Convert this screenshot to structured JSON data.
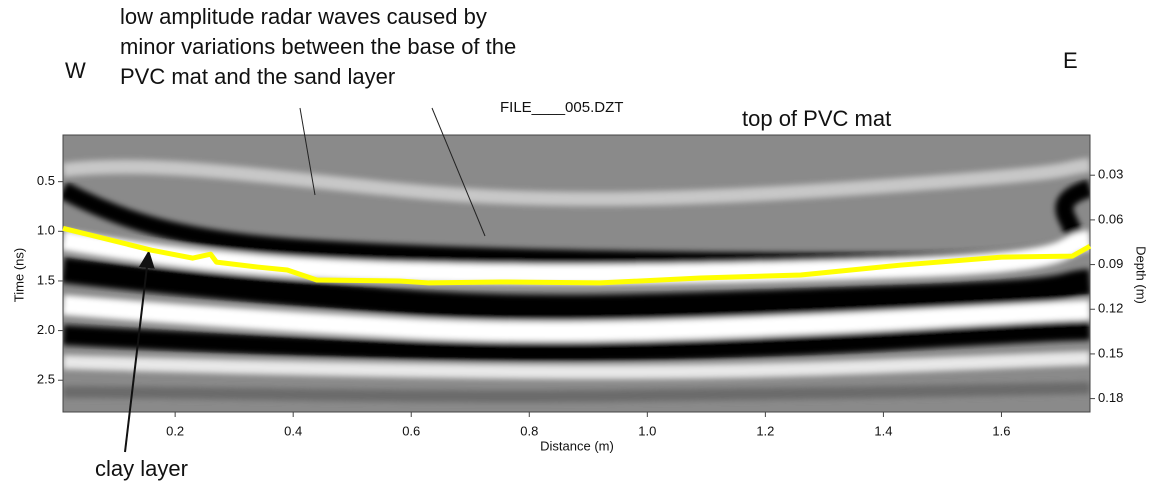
{
  "chart_data": {
    "type": "line",
    "annotation_lines": [
      "low amplitude radar waves caused by",
      "minor variations between the base of the",
      "PVC mat and the sand layer"
    ],
    "west_label": "W",
    "east_label": "E",
    "file_label": "FILE____005.DZT",
    "top_label": "top of PVC mat",
    "clay_label": "clay layer",
    "x_label": "Distance (m)",
    "y_label": "Time (ns)",
    "y2_label": "Depth (m)",
    "x": [
      0.01,
      0.16,
      0.23,
      0.26,
      0.27,
      0.34,
      0.39,
      0.44,
      0.58,
      0.63,
      0.75,
      0.92,
      1.09,
      1.26,
      1.43,
      1.6,
      1.72,
      1.75
    ],
    "series": [
      {
        "color": "#ffff00",
        "values": [
          0.97,
          1.19,
          1.27,
          1.23,
          1.31,
          1.36,
          1.39,
          1.49,
          1.5,
          1.52,
          1.51,
          1.52,
          1.47,
          1.44,
          1.34,
          1.26,
          1.25,
          1.15
        ]
      }
    ],
    "xlim": [
      0.01,
      1.75
    ],
    "xticks": [
      0.2,
      0.4,
      0.6,
      0.8,
      {
        "value": 1.0,
        "label": "1.0"
      },
      1.2,
      1.4,
      1.6
    ],
    "ylim": [
      2.82,
      0.03
    ],
    "yticks": [
      0.5,
      {
        "value": 1.0,
        "label": "1.0"
      },
      1.5,
      {
        "value": 2.0,
        "label": "2.0"
      },
      2.5
    ],
    "y2lim": [
      0.189,
      0.003
    ],
    "y2ticks": [
      0.03,
      0.06,
      0.09,
      0.12,
      0.15,
      0.18
    ]
  }
}
